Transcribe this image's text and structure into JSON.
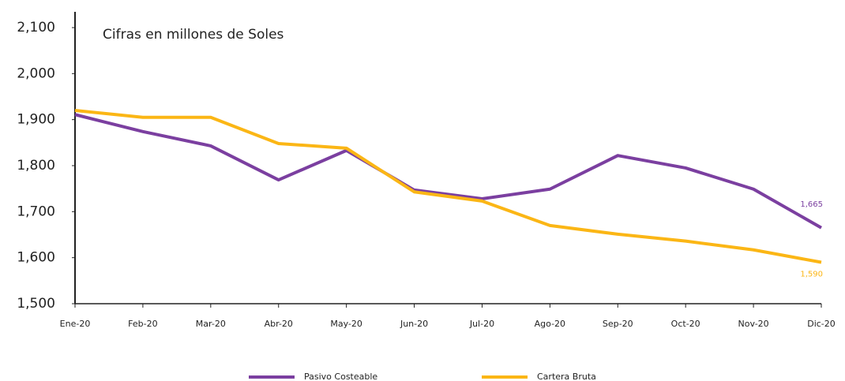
{
  "chart_data": {
    "type": "line",
    "annotation": "Cifras en millones de Soles",
    "categories": [
      "Ene-20",
      "Feb-20",
      "Mar-20",
      "Abr-20",
      "May-20",
      "Jun-20",
      "Jul-20",
      "Ago-20",
      "Sep-20",
      "Oct-20",
      "Nov-20",
      "Dic-20"
    ],
    "series": [
      {
        "name": "Pasivo Costeable",
        "color": "#7b3fa0",
        "values": [
          1911,
          1874,
          1843,
          1769,
          1833,
          1747,
          1728,
          1749,
          1822,
          1795,
          1749,
          1665
        ],
        "value_labels": [
          null,
          null,
          null,
          null,
          null,
          null,
          null,
          null,
          null,
          null,
          null,
          "1,665"
        ]
      },
      {
        "name": "Cartera Bruta",
        "color": "#fbb615",
        "values": [
          1920,
          1905,
          1905,
          1848,
          1838,
          1743,
          1723,
          1670,
          1651,
          1636,
          1617,
          1590
        ],
        "value_labels": [
          null,
          null,
          null,
          null,
          null,
          null,
          null,
          null,
          null,
          null,
          null,
          "1,590"
        ]
      }
    ],
    "ylim": [
      1500,
      2100
    ],
    "yticks": [
      {
        "value": 1500,
        "label": "1,500"
      },
      {
        "value": 1600,
        "label": "1,600"
      },
      {
        "value": 1700,
        "label": "1,700"
      },
      {
        "value": 1800,
        "label": "1,800"
      },
      {
        "value": 1900,
        "label": "1,900"
      },
      {
        "value": 2000,
        "label": "2,000"
      },
      {
        "value": 2100,
        "label": "2,100"
      }
    ],
    "grid": false
  }
}
